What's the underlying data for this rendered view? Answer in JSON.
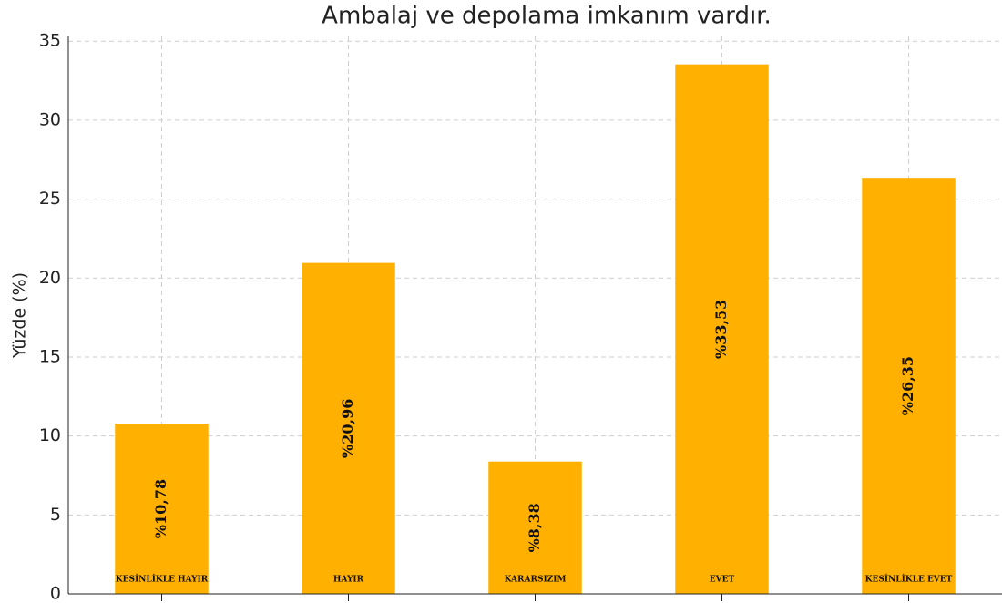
{
  "chart_data": {
    "type": "bar",
    "title": "Ambalaj ve depolama imkanım vardır.",
    "ylabel": "Yüzde (%)",
    "categories": [
      "KESİNLİKLE HAYIR",
      "HAYIR",
      "KARARSIZIM",
      "EVET",
      "KESİNLİKLE EVET"
    ],
    "values": [
      10.78,
      20.96,
      8.38,
      33.53,
      26.35
    ],
    "value_labels": [
      "%10,78",
      "%20,96",
      "%8,38",
      "%33,53",
      "%26,35"
    ],
    "color": "#ffb000",
    "ylim": [
      0,
      35.3
    ],
    "yticks": [
      0,
      5,
      10,
      15,
      20,
      25,
      30,
      35
    ],
    "grid": true
  }
}
